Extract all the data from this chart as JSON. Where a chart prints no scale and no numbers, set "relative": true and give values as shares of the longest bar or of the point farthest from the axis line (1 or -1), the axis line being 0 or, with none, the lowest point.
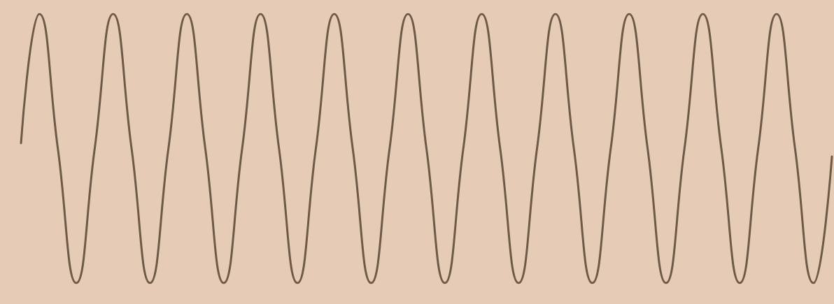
{
  "chart_data": {
    "type": "line",
    "relative": true,
    "color": "#6e5a48",
    "marker": "none",
    "line_style": "solid",
    "categories": [
      null,
      null,
      null,
      null,
      null,
      null,
      null,
      null,
      null,
      null,
      null,
      null,
      null,
      null,
      null,
      null,
      null,
      null,
      null,
      null,
      null,
      null,
      null,
      null,
      null,
      null,
      null,
      null,
      null,
      null,
      null,
      null,
      null,
      null,
      null,
      null,
      null,
      null,
      null,
      null,
      null,
      null,
      null,
      null,
      null
    ],
    "values": [
      0.52,
      1,
      0.5,
      0,
      0.5,
      1,
      0.5,
      0,
      0.5,
      1,
      0.5,
      0,
      0.5,
      1,
      0.5,
      0,
      0.5,
      1,
      0.5,
      0,
      0.5,
      1,
      0.5,
      0,
      0.5,
      1,
      0.5,
      0,
      0.5,
      1,
      0.5,
      0,
      0.5,
      1,
      0.5,
      0,
      0.5,
      1,
      0.5,
      0,
      0.5,
      1,
      0.5,
      0,
      0.47
    ]
  }
}
